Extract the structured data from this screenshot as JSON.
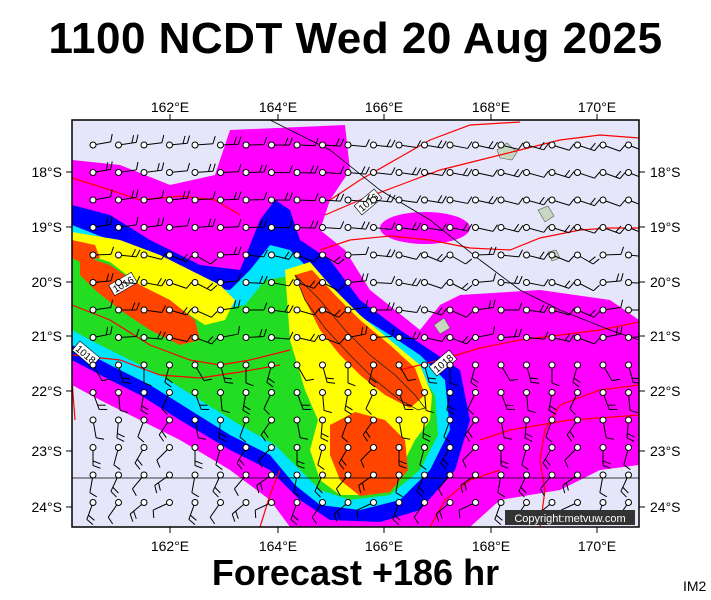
{
  "header": {
    "title": "1100 NCDT Wed 20 Aug 2025"
  },
  "footer": {
    "forecast": "Forecast +186 hr",
    "code": "IM2"
  },
  "map": {
    "lon_labels": [
      "162°E",
      "164°E",
      "166°E",
      "168°E",
      "170°E"
    ],
    "lat_labels": [
      "18°S",
      "19°S",
      "20°S",
      "21°S",
      "22°S",
      "23°S",
      "24°S"
    ],
    "isobar_labels": [
      "1016",
      "1016",
      "1018",
      "1018"
    ],
    "copyright": "Copyright:metvuw.com",
    "colors": {
      "background": "#e6e6fa",
      "light_rain": "#ff00ff",
      "moderate": "#0000ff",
      "cyan": "#00ffff",
      "green": "#00ff00",
      "yellow": "#ffff00",
      "heavy": "#ff4500",
      "isobar": "#ff0000"
    }
  }
}
